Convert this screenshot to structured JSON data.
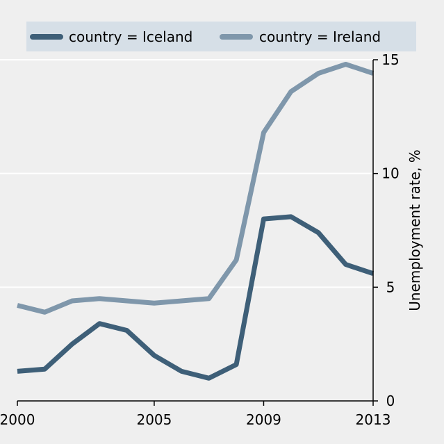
{
  "chart_data": {
    "type": "line",
    "x": [
      2000,
      2001,
      2002,
      2003,
      2004,
      2005,
      2006,
      2007,
      2008,
      2009,
      2010,
      2011,
      2012,
      2013
    ],
    "series": [
      {
        "name": "country = Iceland",
        "color": "#3e5f78",
        "values": [
          1.3,
          1.4,
          2.5,
          3.4,
          3.1,
          2.0,
          1.3,
          1.0,
          1.6,
          8.0,
          8.1,
          7.4,
          6.0,
          5.6
        ]
      },
      {
        "name": "country = Ireland",
        "color": "#7f97ab",
        "values": [
          4.2,
          3.9,
          4.4,
          4.5,
          4.4,
          4.3,
          4.4,
          4.5,
          6.2,
          11.8,
          13.6,
          14.4,
          14.8,
          14.4
        ]
      }
    ],
    "xticks": [
      "2000",
      "2005",
      "2009",
      "2013"
    ],
    "xtick_values": [
      2000,
      2005,
      2009,
      2013
    ],
    "yticks": [
      "0",
      "5",
      "10",
      "15"
    ],
    "ytick_values": [
      0,
      5,
      10,
      15
    ],
    "xlim": [
      2000,
      2013
    ],
    "ylim": [
      0,
      15
    ],
    "xlabel": "",
    "ylabel": "Unemployment rate, %",
    "y_axis_side": "right",
    "grid": "horizontal",
    "legend_position": "top",
    "background": "#efefef",
    "legend_background": "#d6dfe7"
  }
}
